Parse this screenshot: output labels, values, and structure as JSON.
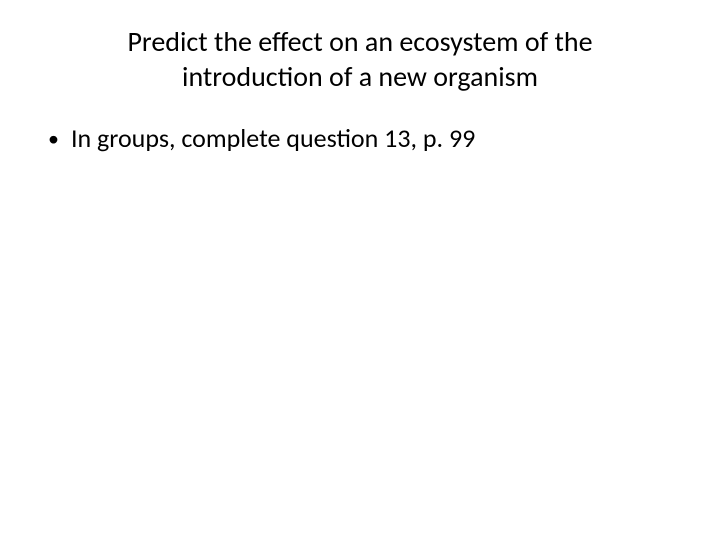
{
  "slide": {
    "title": "Predict the effect on an ecosystem of the introduction of a new organism",
    "bullets": [
      {
        "text": "In groups, complete question 13, p. 99"
      }
    ]
  },
  "style": {
    "background_color": "#ffffff",
    "text_color": "#000000",
    "title_fontsize": 28,
    "body_fontsize": 26,
    "font_family": "Calibri"
  }
}
